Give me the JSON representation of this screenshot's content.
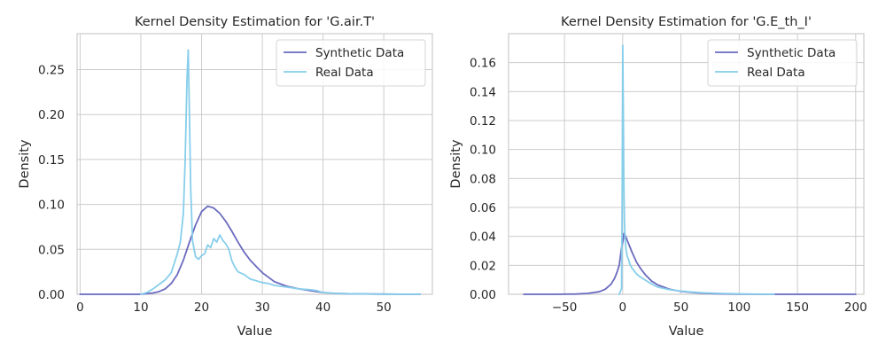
{
  "chart_data": [
    {
      "type": "line",
      "title": "Kernel Density Estimation for 'G.air.T'",
      "xlabel": "Value",
      "ylabel": "Density",
      "xlim": [
        -0.5,
        58
      ],
      "ylim": [
        0,
        0.29
      ],
      "grid": true,
      "legend_position": "top-right",
      "xticks": [
        0,
        10,
        20,
        30,
        40,
        50
      ],
      "xtick_labels": [
        "0",
        "10",
        "20",
        "30",
        "40",
        "50"
      ],
      "yticks": [
        0,
        0.05,
        0.1,
        0.15,
        0.2,
        0.25
      ],
      "ytick_labels": [
        "0.00",
        "0.05",
        "0.10",
        "0.15",
        "0.20",
        "0.25"
      ],
      "series": [
        {
          "name": "Synthetic Data",
          "color": "#6a6abf",
          "x": [
            0,
            5,
            10,
            12,
            13,
            14,
            15,
            16,
            17,
            18,
            19,
            20,
            21,
            22,
            23,
            24,
            25,
            26,
            27,
            28,
            29,
            30,
            32,
            34,
            36,
            38,
            40,
            42,
            45,
            50,
            56
          ],
          "y": [
            0.0,
            0.0,
            0.0,
            0.0015,
            0.003,
            0.006,
            0.012,
            0.022,
            0.038,
            0.058,
            0.077,
            0.092,
            0.098,
            0.096,
            0.09,
            0.081,
            0.07,
            0.058,
            0.047,
            0.038,
            0.031,
            0.024,
            0.014,
            0.009,
            0.006,
            0.004,
            0.002,
            0.001,
            0.0005,
            0.0002,
            0.0
          ]
        },
        {
          "name": "Real Data",
          "color": "#87ceeb",
          "x": [
            10,
            11,
            12,
            13,
            14,
            15,
            16,
            16.5,
            17,
            17.3,
            17.6,
            17.8,
            18,
            18.2,
            18.5,
            19,
            19.5,
            20,
            20.5,
            21,
            21.5,
            22,
            22.5,
            23,
            23.5,
            24,
            24.5,
            25,
            25.5,
            26,
            27,
            28,
            29,
            30,
            31,
            32,
            33,
            34,
            35,
            36,
            37,
            38,
            39,
            40,
            42,
            45,
            50,
            56
          ],
          "y": [
            0.0,
            0.002,
            0.006,
            0.011,
            0.016,
            0.024,
            0.045,
            0.058,
            0.09,
            0.15,
            0.24,
            0.272,
            0.2,
            0.12,
            0.06,
            0.042,
            0.039,
            0.043,
            0.045,
            0.055,
            0.052,
            0.062,
            0.058,
            0.066,
            0.06,
            0.056,
            0.05,
            0.037,
            0.03,
            0.025,
            0.022,
            0.017,
            0.015,
            0.013,
            0.012,
            0.01,
            0.009,
            0.008,
            0.007,
            0.006,
            0.0055,
            0.005,
            0.004,
            0.002,
            0.001,
            0.0005,
            0.0002,
            0.0
          ]
        }
      ]
    },
    {
      "type": "line",
      "title": "Kernel Density Estimation for 'G.E_th_I'",
      "xlabel": "Value",
      "ylabel": "Density",
      "xlim": [
        -98,
        207
      ],
      "ylim": [
        0,
        0.18
      ],
      "grid": true,
      "legend_position": "top-right",
      "xticks": [
        -50,
        0,
        50,
        100,
        150,
        200
      ],
      "xtick_labels": [
        "−50",
        "0",
        "50",
        "100",
        "150",
        "200"
      ],
      "yticks": [
        0,
        0.02,
        0.04,
        0.06,
        0.08,
        0.1,
        0.12,
        0.14,
        0.16
      ],
      "ytick_labels": [
        "0.00",
        "0.02",
        "0.04",
        "0.06",
        "0.08",
        "0.10",
        "0.12",
        "0.14",
        "0.16"
      ],
      "series": [
        {
          "name": "Synthetic Data",
          "color": "#6a6abf",
          "x": [
            -85,
            -60,
            -40,
            -30,
            -20,
            -15,
            -10,
            -7,
            -5,
            -3,
            -2,
            -1,
            0,
            1,
            2,
            3,
            5,
            8,
            12,
            16,
            20,
            25,
            30,
            40,
            50,
            60,
            70,
            80,
            100,
            130,
            160,
            200
          ],
          "y": [
            0.0,
            0.0,
            0.0002,
            0.0006,
            0.0018,
            0.0035,
            0.007,
            0.011,
            0.015,
            0.02,
            0.026,
            0.032,
            0.036,
            0.042,
            0.041,
            0.039,
            0.035,
            0.029,
            0.022,
            0.017,
            0.013,
            0.009,
            0.0065,
            0.0035,
            0.002,
            0.0012,
            0.0007,
            0.0004,
            0.0001,
            0.0,
            0.0,
            0.0
          ]
        },
        {
          "name": "Real Data",
          "color": "#87ceeb",
          "x": [
            -3,
            -1,
            -0.5,
            0,
            0.5,
            1,
            1.5,
            2,
            3,
            4,
            5,
            6,
            8,
            10,
            12,
            15,
            20,
            25,
            30,
            40,
            50,
            60,
            70,
            80,
            100,
            130
          ],
          "y": [
            0.0,
            0.004,
            0.06,
            0.172,
            0.13,
            0.075,
            0.05,
            0.038,
            0.03,
            0.026,
            0.024,
            0.021,
            0.018,
            0.016,
            0.014,
            0.012,
            0.0095,
            0.007,
            0.005,
            0.0032,
            0.0022,
            0.0015,
            0.001,
            0.0007,
            0.0003,
            0.0
          ]
        }
      ]
    }
  ]
}
